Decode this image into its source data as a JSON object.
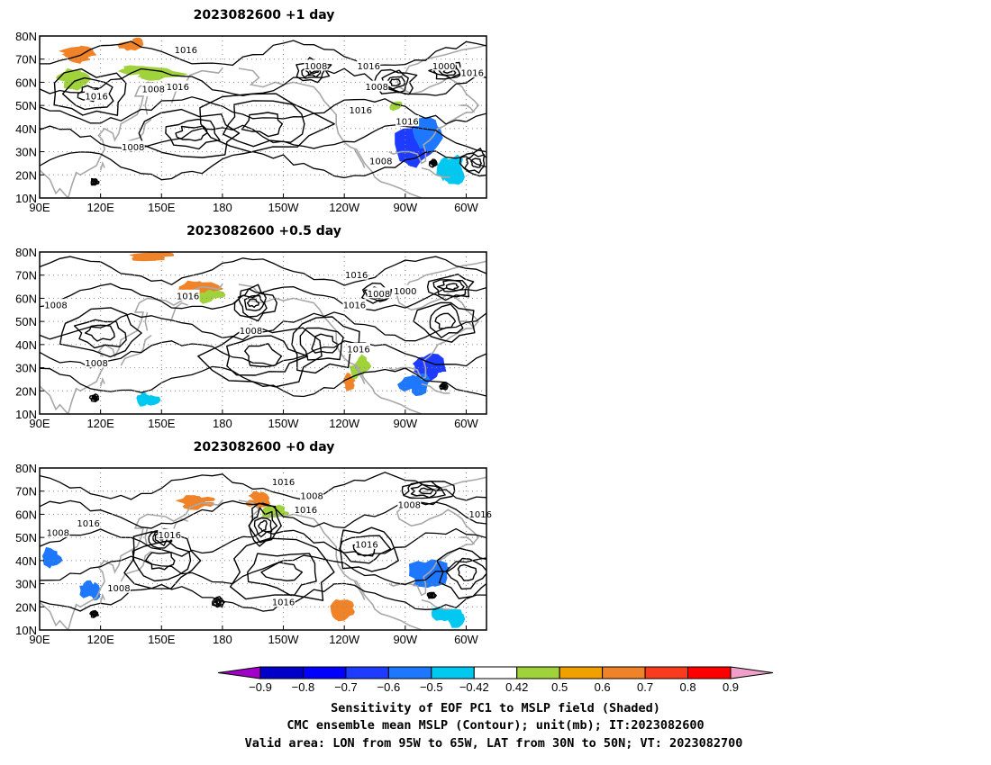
{
  "panels": [
    {
      "title": "2023082600  +1 day",
      "contour_labels": [
        {
          "text": "1016",
          "lon": 162,
          "lat": 74
        },
        {
          "text": "1008",
          "lon": 226,
          "lat": 67
        },
        {
          "text": "1016",
          "lon": 252,
          "lat": 67
        },
        {
          "text": "1008",
          "lon": 256,
          "lat": 58
        },
        {
          "text": "1000",
          "lon": 289,
          "lat": 67
        },
        {
          "text": "1016",
          "lon": 303,
          "lat": 64
        },
        {
          "text": "1016",
          "lon": 118,
          "lat": 54
        },
        {
          "text": "1008",
          "lon": 146,
          "lat": 57
        },
        {
          "text": "1016",
          "lon": 158,
          "lat": 58
        },
        {
          "text": "1016",
          "lon": 248,
          "lat": 48
        },
        {
          "text": "1016",
          "lon": 271,
          "lat": 43
        },
        {
          "text": "1008",
          "lon": 136,
          "lat": 32
        },
        {
          "text": "1008",
          "lon": 258,
          "lat": 26
        }
      ],
      "regions": [
        {
          "color": "#f08228",
          "lon": [
            100,
            122
          ],
          "lat": [
            68,
            76
          ]
        },
        {
          "color": "#a0d23c",
          "lon": [
            96,
            115
          ],
          "lat": [
            56,
            66
          ]
        },
        {
          "color": "#a0d23c",
          "lon": [
            128,
            160
          ],
          "lat": [
            60,
            68
          ]
        },
        {
          "color": "#f08228",
          "lon": [
            128,
            142
          ],
          "lat": [
            73,
            79
          ]
        },
        {
          "color": "#a0d23c",
          "lon": [
            262,
            270
          ],
          "lat": [
            47,
            52
          ]
        },
        {
          "color": "#1e3cff",
          "lon": [
            262,
            286
          ],
          "lat": [
            22,
            44
          ]
        },
        {
          "color": "#1e78ff",
          "lon": [
            275,
            291
          ],
          "lat": [
            24,
            46
          ]
        },
        {
          "color": "#00c8f0",
          "lon": [
            285,
            298
          ],
          "lat": [
            14,
            30
          ]
        }
      ]
    },
    {
      "title": "2023082600  +0.5 day",
      "contour_labels": [
        {
          "text": "1016",
          "lon": 163,
          "lat": 61
        },
        {
          "text": "1008",
          "lon": 98,
          "lat": 57
        },
        {
          "text": "1016",
          "lon": 246,
          "lat": 70
        },
        {
          "text": "1008",
          "lon": 257,
          "lat": 62
        },
        {
          "text": "1000",
          "lon": 270,
          "lat": 63
        },
        {
          "text": "1016",
          "lon": 245,
          "lat": 57
        },
        {
          "text": "1008",
          "lon": 194,
          "lat": 46
        },
        {
          "text": "1016",
          "lon": 247,
          "lat": 38
        },
        {
          "text": "1008",
          "lon": 118,
          "lat": 32
        }
      ],
      "regions": [
        {
          "color": "#f08228",
          "lon": [
            135,
            160
          ],
          "lat": [
            76,
            80
          ]
        },
        {
          "color": "#f08228",
          "lon": [
            156,
            176
          ],
          "lat": [
            60,
            68
          ]
        },
        {
          "color": "#a0d23c",
          "lon": [
            168,
            182
          ],
          "lat": [
            58,
            64
          ]
        },
        {
          "color": "#1e3cff",
          "lon": [
            272,
            290
          ],
          "lat": [
            25,
            38
          ]
        },
        {
          "color": "#1e78ff",
          "lon": [
            268,
            282
          ],
          "lat": [
            18,
            28
          ]
        },
        {
          "color": "#f08228",
          "lon": [
            238,
            246
          ],
          "lat": [
            20,
            28
          ]
        },
        {
          "color": "#a0d23c",
          "lon": [
            243,
            252
          ],
          "lat": [
            25,
            35
          ]
        },
        {
          "color": "#00c8f0",
          "lon": [
            138,
            148
          ],
          "lat": [
            13,
            20
          ]
        }
      ]
    },
    {
      "title": "2023082600  +0 day",
      "contour_labels": [
        {
          "text": "1016",
          "lon": 210,
          "lat": 74
        },
        {
          "text": "1008",
          "lon": 224,
          "lat": 68
        },
        {
          "text": "1016",
          "lon": 221,
          "lat": 62
        },
        {
          "text": "1008",
          "lon": 272,
          "lat": 64
        },
        {
          "text": "1016",
          "lon": 307,
          "lat": 60
        },
        {
          "text": "1016",
          "lon": 114,
          "lat": 56
        },
        {
          "text": "1008",
          "lon": 99,
          "lat": 52
        },
        {
          "text": "1016",
          "lon": 154,
          "lat": 51
        },
        {
          "text": "1016",
          "lon": 251,
          "lat": 47
        },
        {
          "text": "1008",
          "lon": 129,
          "lat": 28
        },
        {
          "text": "1016",
          "lon": 210,
          "lat": 22
        }
      ],
      "regions": [
        {
          "color": "#f08228",
          "lon": [
            160,
            178
          ],
          "lat": [
            62,
            68
          ]
        },
        {
          "color": "#f08228",
          "lon": [
            190,
            203
          ],
          "lat": [
            62,
            70
          ]
        },
        {
          "color": "#a0d23c",
          "lon": [
            198,
            214
          ],
          "lat": [
            58,
            64
          ]
        },
        {
          "color": "#1e78ff",
          "lon": [
            90,
            100
          ],
          "lat": [
            35,
            45
          ]
        },
        {
          "color": "#1e78ff",
          "lon": [
            110,
            120
          ],
          "lat": [
            22,
            32
          ]
        },
        {
          "color": "#1e78ff",
          "lon": [
            274,
            295
          ],
          "lat": [
            28,
            40
          ]
        },
        {
          "color": "#f08228",
          "lon": [
            233,
            245
          ],
          "lat": [
            13,
            24
          ]
        },
        {
          "color": "#00c8f0",
          "lon": [
            283,
            298
          ],
          "lat": [
            12,
            22
          ]
        }
      ]
    }
  ],
  "axes": {
    "lat_ticks": [
      "10N",
      "20N",
      "30N",
      "40N",
      "50N",
      "60N",
      "70N",
      "80N"
    ],
    "lon_ticks": [
      "90E",
      "120E",
      "150E",
      "180",
      "150W",
      "120W",
      "90W",
      "60W"
    ],
    "lon_tick_values": [
      90,
      120,
      150,
      180,
      210,
      240,
      270,
      300
    ],
    "lat_tick_values": [
      10,
      20,
      30,
      40,
      50,
      60,
      70,
      80
    ],
    "lon_range": [
      90,
      310
    ],
    "lat_range": [
      10,
      80
    ]
  },
  "colorbar": {
    "labels": [
      "-0.9",
      "-0.8",
      "-0.7",
      "-0.6",
      "-0.5",
      "-0.42",
      "0.42",
      "0.5",
      "0.6",
      "0.7",
      "0.8",
      "0.9"
    ],
    "colors": [
      "#a000c8",
      "#0000c8",
      "#0000ff",
      "#1e3cff",
      "#1e78ff",
      "#00c8f0",
      "#ffffff",
      "#a0d23c",
      "#f0a000",
      "#f08228",
      "#fa3c1e",
      "#ff0000",
      "#f0a0c8"
    ]
  },
  "caption": {
    "line1": "Sensitivity of EOF PC1 to MSLP field (Shaded)",
    "line2": "CMC ensemble mean MSLP (Contour); unit(mb); IT:2023082600",
    "line3": "Valid area: LON from 95W to 65W, LAT from 30N to 50N; VT: 2023082700"
  }
}
